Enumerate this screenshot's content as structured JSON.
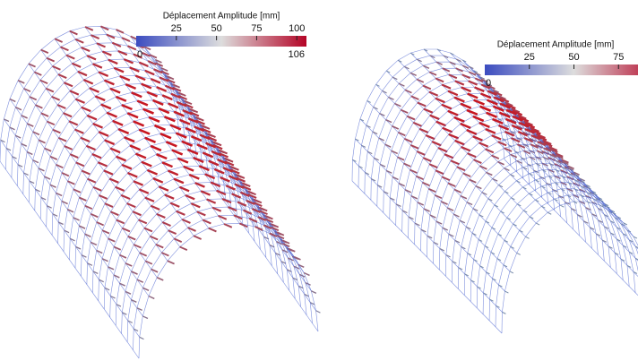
{
  "panels": [
    {
      "colorbar": {
        "title": "Déplacement Amplitude [mm]",
        "range": [
          0,
          106
        ],
        "ticks": [
          25,
          50,
          75,
          100
        ]
      }
    },
    {
      "colorbar": {
        "title": "Déplacement Amplitude [mm]",
        "range": [
          0,
          100
        ],
        "ticks": [
          25,
          50,
          75
        ]
      }
    }
  ]
}
